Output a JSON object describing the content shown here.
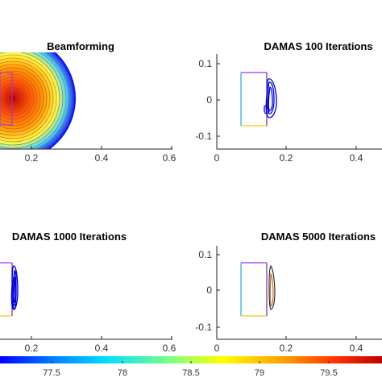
{
  "chart_data": [
    {
      "type": "contour",
      "title": "Beamforming",
      "xlim": [
        0,
        0.6
      ],
      "x_ticks": [
        "0.2",
        "0.4",
        "0.6"
      ],
      "y_ticks": [],
      "source_region": {
        "x": [
          0.0,
          0.14
        ],
        "y": [
          -0.075,
          0.075
        ]
      },
      "peak": {
        "x": 0.1,
        "y": 0.0
      },
      "outer_radius": 0.18
    },
    {
      "type": "contour",
      "title": "DAMAS  100 Iterations",
      "xlim": [
        0,
        0.6
      ],
      "ylim": [
        -0.12,
        0.12
      ],
      "x_ticks": [
        "0",
        "0.2",
        "0.4",
        "0.6"
      ],
      "y_ticks": [
        "0.1",
        "0",
        "-0.1"
      ],
      "source_region": {
        "x": [
          0.07,
          0.14
        ],
        "y": [
          -0.075,
          0.075
        ]
      }
    },
    {
      "type": "contour",
      "title": "DAMAS  1000 Iterations",
      "xlim": [
        0,
        0.6
      ],
      "x_ticks": [
        "0.2",
        "0.4",
        "0.6"
      ],
      "y_ticks": [],
      "source_region": {
        "x": [
          0.0,
          0.14
        ],
        "y": [
          -0.075,
          0.075
        ]
      }
    },
    {
      "type": "contour",
      "title": "DAMAS  5000 Iterations",
      "xlim": [
        0,
        0.6
      ],
      "ylim": [
        -0.12,
        0.12
      ],
      "x_ticks": [
        "0",
        "0.2",
        "0.4",
        "0.6"
      ],
      "y_ticks": [
        "0.1",
        "0",
        "-0.1"
      ],
      "source_region": {
        "x": [
          0.07,
          0.14
        ],
        "y": [
          -0.075,
          0.075
        ]
      }
    }
  ],
  "colorbar": {
    "range": [
      77,
      79.75
    ],
    "ticks": [
      "77.5",
      "78",
      "78.5",
      "79",
      "79.5"
    ],
    "colors": [
      "#0000ff",
      "#0080ff",
      "#00e0ff",
      "#80ff80",
      "#ffff00",
      "#ffa000",
      "#ff3000",
      "#c00000"
    ]
  },
  "source_box_colors": [
    "#9b30ff",
    "#1fa8e0",
    "#f5c518"
  ]
}
